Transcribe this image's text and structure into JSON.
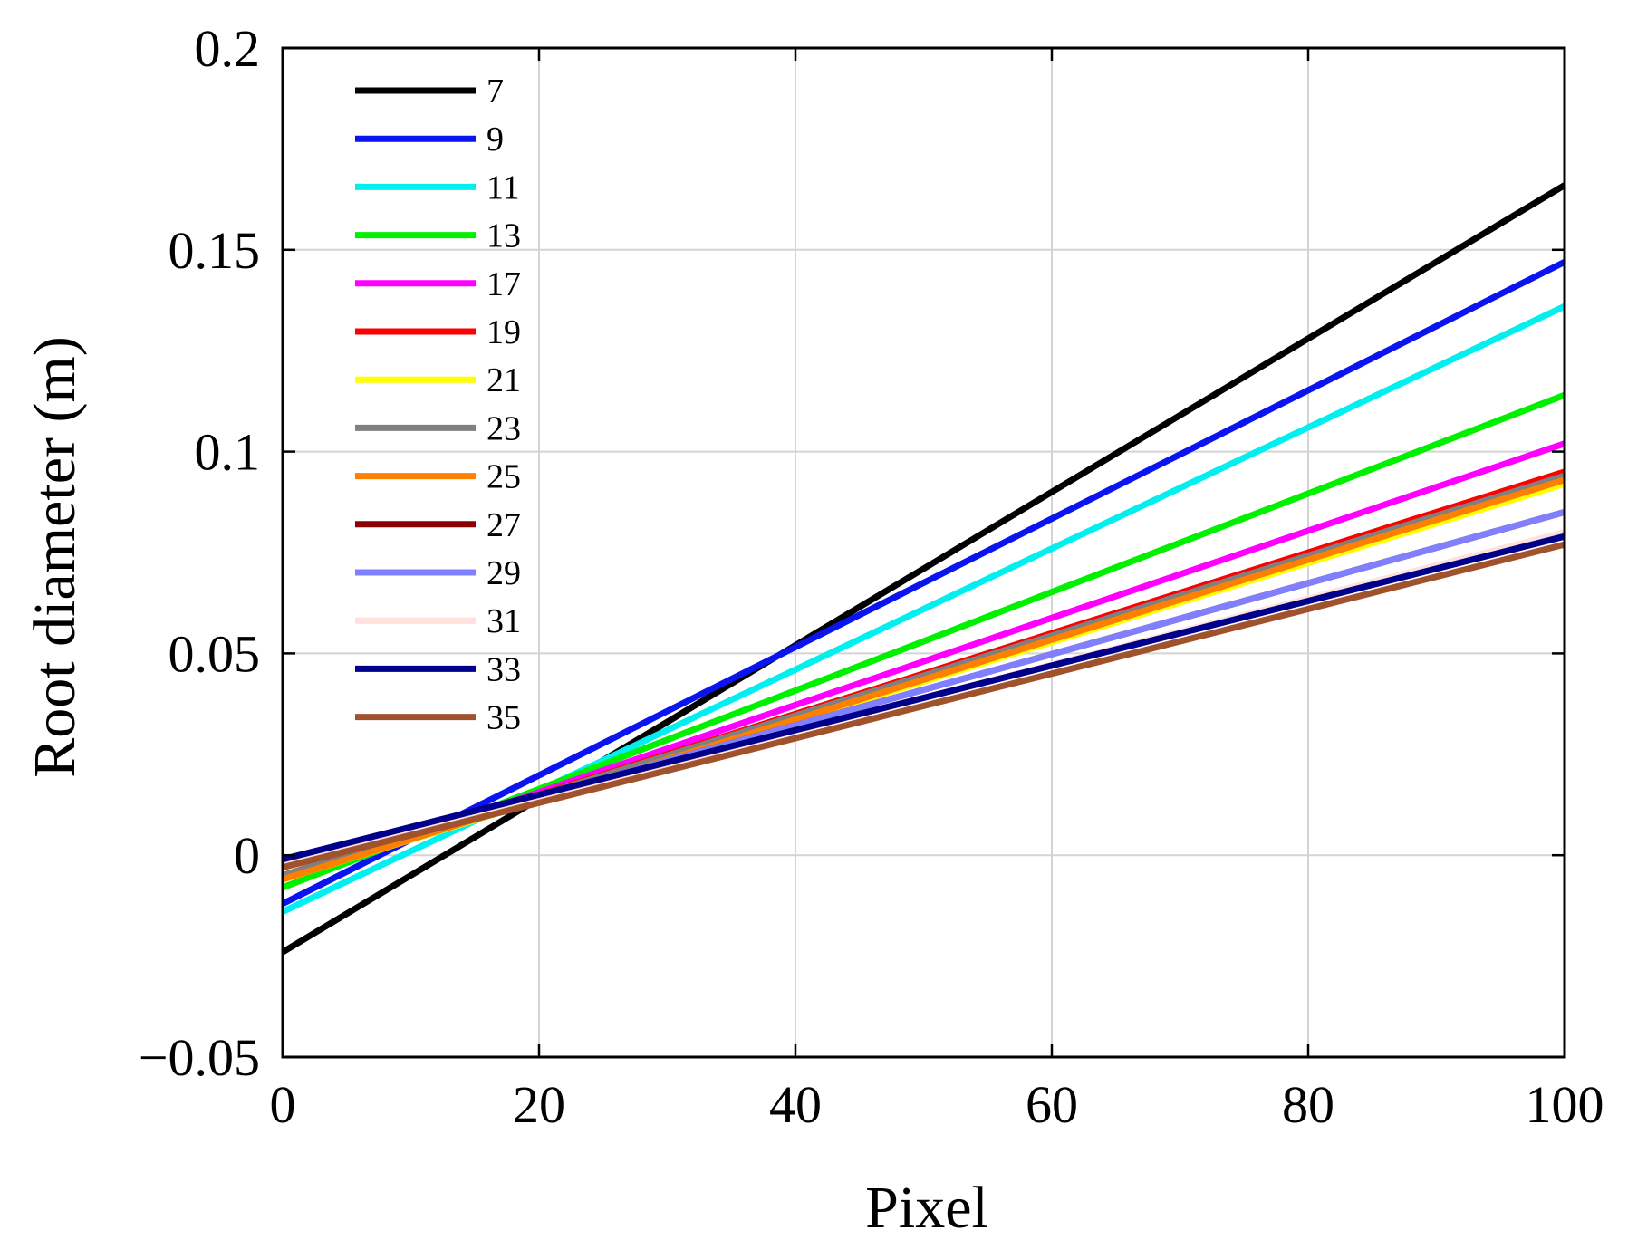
{
  "chart_data": {
    "type": "line",
    "title": "",
    "xlabel": "Pixel",
    "ylabel": "Root diameter (m)",
    "xlim": [
      0,
      100
    ],
    "ylim": [
      -0.05,
      0.2
    ],
    "x_ticks": [
      0,
      20,
      40,
      60,
      80,
      100
    ],
    "x_tick_labels": [
      "0",
      "20",
      "40",
      "60",
      "80",
      "100"
    ],
    "y_ticks": [
      -0.05,
      0,
      0.05,
      0.1,
      0.15,
      0.2
    ],
    "y_tick_labels": [
      "−0.05",
      "0",
      "0.05",
      "0.1",
      "0.15",
      "0.2"
    ],
    "grid": true,
    "legend_position": "top-left",
    "x": [
      0,
      100
    ],
    "series": [
      {
        "name": "7",
        "color": "#000000",
        "values": [
          -0.024,
          0.166
        ]
      },
      {
        "name": "9",
        "color": "#0a14f0",
        "values": [
          -0.012,
          0.147
        ]
      },
      {
        "name": "11",
        "color": "#00f0f0",
        "values": [
          -0.014,
          0.136
        ]
      },
      {
        "name": "13",
        "color": "#00f000",
        "values": [
          -0.008,
          0.114
        ]
      },
      {
        "name": "17",
        "color": "#ff00ff",
        "values": [
          -0.006,
          0.102
        ]
      },
      {
        "name": "19",
        "color": "#ff0000",
        "values": [
          -0.005,
          0.095
        ]
      },
      {
        "name": "21",
        "color": "#ffff00",
        "values": [
          -0.006,
          0.092
        ]
      },
      {
        "name": "23",
        "color": "#808080",
        "values": [
          -0.005,
          0.094
        ]
      },
      {
        "name": "25",
        "color": "#ff8000",
        "values": [
          -0.006,
          0.093
        ]
      },
      {
        "name": "27",
        "color": "#8b0000",
        "values": [
          -0.003,
          0.085
        ]
      },
      {
        "name": "29",
        "color": "#8080ff",
        "values": [
          -0.003,
          0.085
        ]
      },
      {
        "name": "31",
        "color": "#ffe0dc",
        "values": [
          -0.002,
          0.08
        ]
      },
      {
        "name": "33",
        "color": "#00008b",
        "values": [
          -0.001,
          0.079
        ]
      },
      {
        "name": "35",
        "color": "#a0522d",
        "values": [
          -0.003,
          0.077
        ]
      }
    ]
  }
}
